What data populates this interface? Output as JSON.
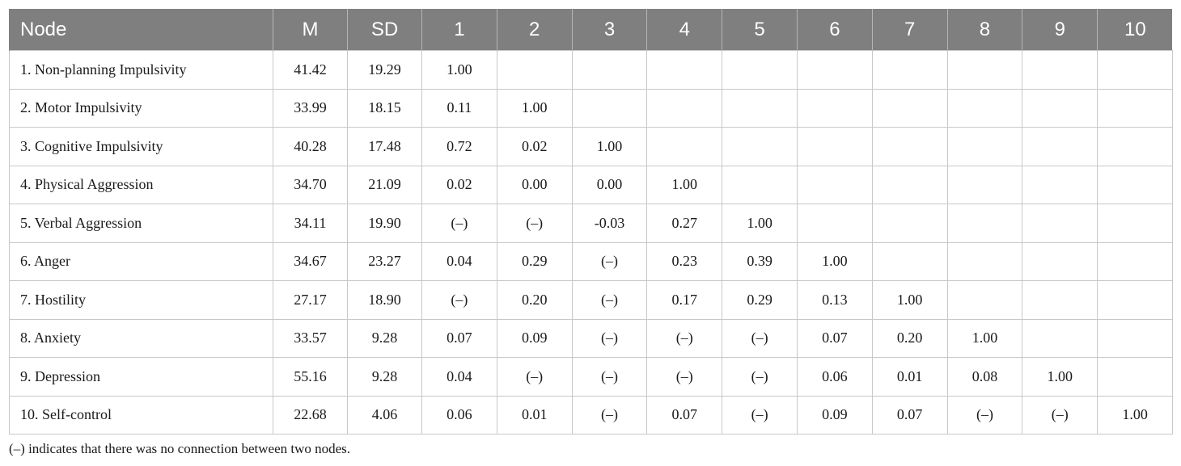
{
  "table": {
    "headers": [
      "Node",
      "M",
      "SD",
      "1",
      "2",
      "3",
      "4",
      "5",
      "6",
      "7",
      "8",
      "9",
      "10"
    ],
    "rows": [
      [
        "1. Non-planning Impulsivity",
        "41.42",
        "19.29",
        "1.00",
        "",
        "",
        "",
        "",
        "",
        "",
        "",
        "",
        ""
      ],
      [
        "2. Motor Impulsivity",
        "33.99",
        "18.15",
        "0.11",
        "1.00",
        "",
        "",
        "",
        "",
        "",
        "",
        "",
        ""
      ],
      [
        "3. Cognitive Impulsivity",
        "40.28",
        "17.48",
        "0.72",
        "0.02",
        "1.00",
        "",
        "",
        "",
        "",
        "",
        "",
        ""
      ],
      [
        "4. Physical Aggression",
        "34.70",
        "21.09",
        "0.02",
        "0.00",
        "0.00",
        "1.00",
        "",
        "",
        "",
        "",
        "",
        ""
      ],
      [
        "5. Verbal Aggression",
        "34.11",
        "19.90",
        "(–)",
        "(–)",
        "-0.03",
        "0.27",
        "1.00",
        "",
        "",
        "",
        "",
        ""
      ],
      [
        "6. Anger",
        "34.67",
        "23.27",
        "0.04",
        "0.29",
        "(–)",
        "0.23",
        "0.39",
        "1.00",
        "",
        "",
        "",
        ""
      ],
      [
        "7. Hostility",
        "27.17",
        "18.90",
        "(–)",
        "0.20",
        "(–)",
        "0.17",
        "0.29",
        "0.13",
        "1.00",
        "",
        "",
        ""
      ],
      [
        "8. Anxiety",
        "33.57",
        "9.28",
        "0.07",
        "0.09",
        "(–)",
        "(–)",
        "(–)",
        "0.07",
        "0.20",
        "1.00",
        "",
        ""
      ],
      [
        "9. Depression",
        "55.16",
        "9.28",
        "0.04",
        "(–)",
        "(–)",
        "(–)",
        "(–)",
        "0.06",
        "0.01",
        "0.08",
        "1.00",
        ""
      ],
      [
        "10. Self-control",
        "22.68",
        "4.06",
        "0.06",
        "0.01",
        "(–)",
        "0.07",
        "(–)",
        "0.09",
        "0.07",
        "(–)",
        "(–)",
        "1.00"
      ]
    ]
  },
  "footnote": "(–) indicates that there was no connection between two nodes.",
  "colors": {
    "header_background": "#7f7f7f",
    "header_text": "#ffffff",
    "grid_lines": "#c8c8c8"
  }
}
